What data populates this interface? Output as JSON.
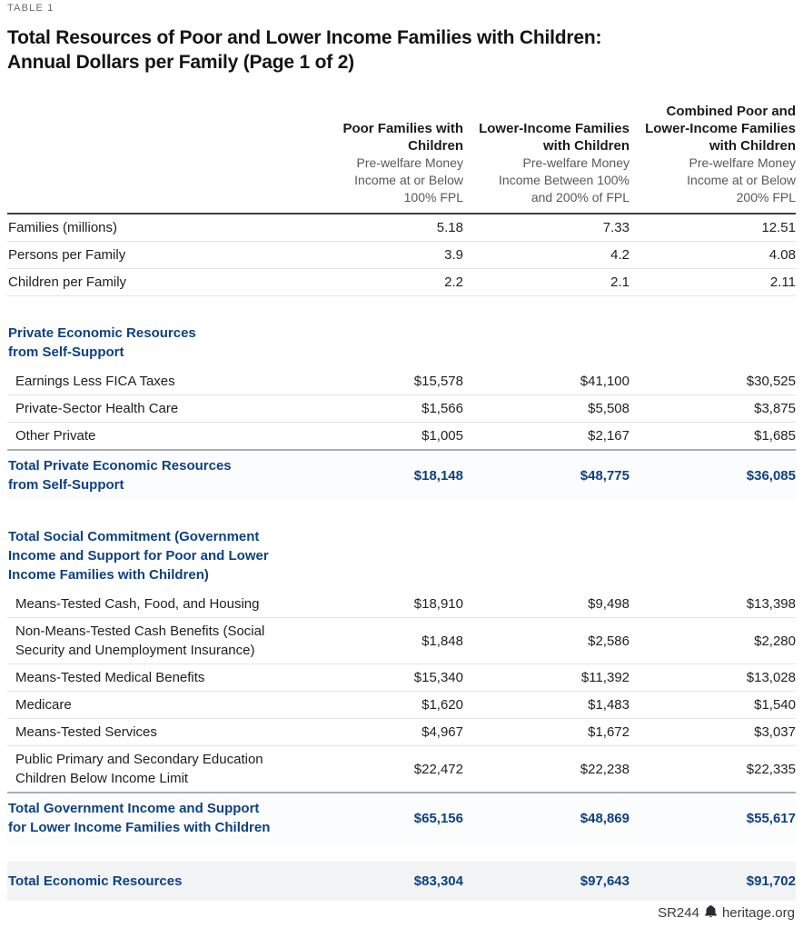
{
  "meta": {
    "table_label": "TABLE 1",
    "title_line1": "Total Resources of Poor and Lower Income Families with Children:",
    "title_line2": "Annual Dollars per Family (Page 1 of 2)"
  },
  "colors": {
    "accent_navy": "#0e4180",
    "rule_dark": "#3f4043",
    "rule_gray": "#a9afb5",
    "row_separator": "#e4e5e7",
    "grand_total_bg": "#f2f3f5",
    "subtitle_gray": "#58595b"
  },
  "columns": [
    {
      "title_lines": [
        "Poor Families with",
        "Children"
      ],
      "subtitle_lines": [
        "Pre-welfare Money",
        "Income at or Below",
        "100% FPL"
      ]
    },
    {
      "title_lines": [
        "Lower-Income Families",
        "with Children"
      ],
      "subtitle_lines": [
        "Pre-welfare Money",
        "Income Between 100%",
        "and 200% of FPL"
      ]
    },
    {
      "title_lines": [
        "Combined Poor and",
        "Lower-Income Families",
        "with Children"
      ],
      "subtitle_lines": [
        "Pre-welfare Money",
        "Income at or Below",
        "200% FPL"
      ]
    }
  ],
  "table": {
    "intro_rows": [
      {
        "label": [
          "Families (millions)"
        ],
        "values": [
          "5.18",
          "7.33",
          "12.51"
        ]
      },
      {
        "label": [
          "Persons per Family"
        ],
        "values": [
          "3.9",
          "4.2",
          "4.08"
        ]
      },
      {
        "label": [
          "Children per Family"
        ],
        "values": [
          "2.2",
          "2.1",
          "2.11"
        ]
      }
    ],
    "sections": [
      {
        "heading": [
          "Private Economic Resources",
          "from Self-Support"
        ],
        "rows": [
          {
            "label": [
              "Earnings Less FICA Taxes"
            ],
            "values": [
              "$15,578",
              "$41,100",
              "$30,525"
            ]
          },
          {
            "label": [
              "Private-Sector Health Care"
            ],
            "values": [
              "$1,566",
              "$5,508",
              "$3,875"
            ]
          },
          {
            "label": [
              "Other Private"
            ],
            "values": [
              "$1,005",
              "$2,167",
              "$1,685"
            ]
          }
        ],
        "total": {
          "label": [
            "Total Private Economic Resources",
            "from Self-Support"
          ],
          "values": [
            "$18,148",
            "$48,775",
            "$36,085"
          ]
        }
      },
      {
        "heading": [
          "Total Social Commitment (Government",
          "Income and Support for Poor and Lower",
          "Income Families with Children)"
        ],
        "rows": [
          {
            "label": [
              "Means-Tested Cash, Food, and Housing"
            ],
            "values": [
              "$18,910",
              "$9,498",
              "$13,398"
            ]
          },
          {
            "label": [
              "Non-Means-Tested Cash Benefits (Social",
              "Security and Unemployment Insurance)"
            ],
            "values": [
              "$1,848",
              "$2,586",
              "$2,280"
            ]
          },
          {
            "label": [
              "Means-Tested Medical Benefits"
            ],
            "values": [
              "$15,340",
              "$11,392",
              "$13,028"
            ]
          },
          {
            "label": [
              "Medicare"
            ],
            "values": [
              "$1,620",
              "$1,483",
              "$1,540"
            ]
          },
          {
            "label": [
              "Means-Tested Services"
            ],
            "values": [
              "$4,967",
              "$1,672",
              "$3,037"
            ]
          },
          {
            "label": [
              "Public Primary and Secondary Education",
              "Children Below Income Limit"
            ],
            "values": [
              "$22,472",
              "$22,238",
              "$22,335"
            ]
          }
        ],
        "total": {
          "label": [
            "Total Government Income and Support",
            "for Lower Income Families with Children"
          ],
          "values": [
            "$65,156",
            "$48,869",
            "$55,617"
          ]
        }
      }
    ],
    "grand_total": {
      "label": [
        "Total Economic Resources"
      ],
      "values": [
        "$83,304",
        "$97,643",
        "$91,702"
      ]
    }
  },
  "footer": {
    "report_id": "SR244",
    "site": "heritage.org",
    "logo": "heritage-bell-icon"
  },
  "chart_data": {
    "type": "table",
    "title": "Total Resources of Poor and Lower Income Families with Children: Annual Dollars per Family (Page 1 of 2)",
    "columns": [
      "Poor Families with Children — Pre-welfare Money Income at or Below 100% FPL",
      "Lower-Income Families with Children — Pre-welfare Money Income Between 100% and 200% of FPL",
      "Combined Poor and Lower-Income Families with Children — Pre-welfare Money Income at or Below 200% FPL"
    ],
    "rows": [
      {
        "label": "Families (millions)",
        "values": [
          5.18,
          7.33,
          12.51
        ]
      },
      {
        "label": "Persons per Family",
        "values": [
          3.9,
          4.2,
          4.08
        ]
      },
      {
        "label": "Children per Family",
        "values": [
          2.2,
          2.1,
          2.11
        ]
      },
      {
        "label": "Earnings Less FICA Taxes",
        "values": [
          15578,
          41100,
          30525
        ]
      },
      {
        "label": "Private-Sector Health Care",
        "values": [
          1566,
          5508,
          3875
        ]
      },
      {
        "label": "Other Private",
        "values": [
          1005,
          2167,
          1685
        ]
      },
      {
        "label": "Total Private Economic Resources from Self-Support",
        "values": [
          18148,
          48775,
          36085
        ]
      },
      {
        "label": "Means-Tested Cash, Food, and Housing",
        "values": [
          18910,
          9498,
          13398
        ]
      },
      {
        "label": "Non-Means-Tested Cash Benefits (Social Security and Unemployment Insurance)",
        "values": [
          1848,
          2586,
          2280
        ]
      },
      {
        "label": "Means-Tested Medical Benefits",
        "values": [
          15340,
          11392,
          13028
        ]
      },
      {
        "label": "Medicare",
        "values": [
          1620,
          1483,
          1540
        ]
      },
      {
        "label": "Means-Tested Services",
        "values": [
          4967,
          1672,
          3037
        ]
      },
      {
        "label": "Public Primary and Secondary Education Children Below Income Limit",
        "values": [
          22472,
          22238,
          22335
        ]
      },
      {
        "label": "Total Government Income and Support for Lower Income Families with Children",
        "values": [
          65156,
          48869,
          55617
        ]
      },
      {
        "label": "Total Economic Resources",
        "values": [
          83304,
          97643,
          91702
        ]
      }
    ]
  }
}
